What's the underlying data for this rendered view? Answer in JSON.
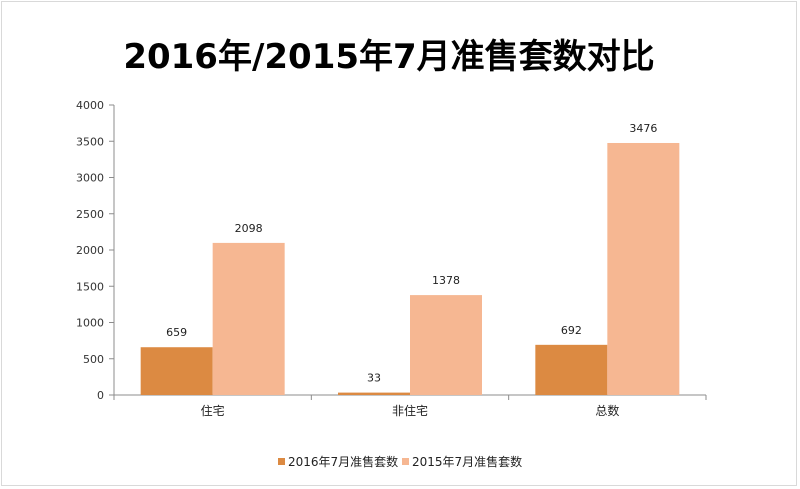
{
  "chart_data": {
    "type": "bar",
    "title": "2016年/2015年7月准售套数对比",
    "xlabel": "",
    "ylabel": "",
    "categories": [
      "住宅",
      "非住宅",
      "总数"
    ],
    "series": [
      {
        "name": "2016年7月准售套数",
        "values": [
          659,
          33,
          692
        ],
        "color": "#dc8a42"
      },
      {
        "name": "2015年7月准售套数",
        "values": [
          2098,
          1378,
          3476
        ],
        "color": "#f6b792"
      }
    ],
    "ylim": [
      0,
      4000
    ],
    "yticks": [
      0,
      500,
      1000,
      1500,
      2000,
      2500,
      3000,
      3500,
      4000
    ],
    "grid": false,
    "legend_position": "bottom",
    "axis_color": "#8c8c8c"
  }
}
